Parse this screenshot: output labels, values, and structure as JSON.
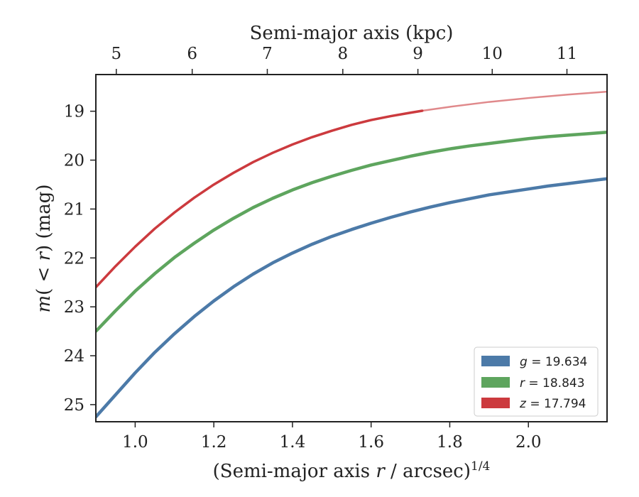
{
  "chart_data": {
    "type": "line",
    "xlabel": "(Semi-major axis r / arcsec)^1/4",
    "ylabel": "m(<r) (mag)",
    "top_xlabel": "Semi-major axis (kpc)",
    "xlim": [
      0.9,
      2.2
    ],
    "ylim": [
      25.35,
      18.25
    ],
    "y_inverted": true,
    "xticks": [
      1.0,
      1.2,
      1.4,
      1.6,
      1.8,
      2.0
    ],
    "xtick_labels": [
      "1.0",
      "1.2",
      "1.4",
      "1.6",
      "1.8",
      "2.0"
    ],
    "yticks": [
      19,
      20,
      21,
      22,
      23,
      24,
      25
    ],
    "ytick_labels": [
      "19",
      "20",
      "21",
      "22",
      "23",
      "24",
      "25"
    ],
    "top_ticks": [
      {
        "label": "5",
        "x": 0.952
      },
      {
        "label": "6",
        "x": 1.145
      },
      {
        "label": "7",
        "x": 1.336
      },
      {
        "label": "8",
        "x": 1.528
      },
      {
        "label": "9",
        "x": 1.719
      },
      {
        "label": "10",
        "x": 1.908
      },
      {
        "label": "11",
        "x": 2.098
      }
    ],
    "legend_position": "lower-right",
    "grid": false,
    "series": [
      {
        "name": "g = 19.634",
        "color": "#4c7aa8",
        "x": [
          0.9,
          0.95,
          1.0,
          1.05,
          1.1,
          1.15,
          1.2,
          1.25,
          1.3,
          1.35,
          1.4,
          1.45,
          1.5,
          1.55,
          1.6,
          1.65,
          1.7,
          1.75,
          1.8,
          1.85,
          1.9,
          1.95,
          2.0,
          2.05,
          2.1,
          2.15,
          2.2
        ],
        "values": [
          25.25,
          24.8,
          24.35,
          23.93,
          23.55,
          23.2,
          22.88,
          22.59,
          22.33,
          22.1,
          21.9,
          21.72,
          21.56,
          21.42,
          21.29,
          21.17,
          21.06,
          20.96,
          20.87,
          20.79,
          20.71,
          20.65,
          20.59,
          20.53,
          20.48,
          20.43,
          20.38
        ]
      },
      {
        "name": "r = 18.843",
        "color": "#5ea55e",
        "x": [
          0.9,
          0.95,
          1.0,
          1.05,
          1.1,
          1.15,
          1.2,
          1.25,
          1.3,
          1.35,
          1.4,
          1.45,
          1.5,
          1.55,
          1.6,
          1.65,
          1.7,
          1.75,
          1.8,
          1.85,
          1.9,
          1.95,
          2.0,
          2.05,
          2.1,
          2.15,
          2.2
        ],
        "values": [
          23.5,
          23.08,
          22.68,
          22.32,
          21.99,
          21.7,
          21.43,
          21.19,
          20.97,
          20.78,
          20.61,
          20.46,
          20.33,
          20.21,
          20.1,
          20.01,
          19.92,
          19.84,
          19.77,
          19.71,
          19.66,
          19.61,
          19.56,
          19.52,
          19.49,
          19.46,
          19.43
        ]
      },
      {
        "name": "z = 17.794",
        "color": "#cc3a3e",
        "faded_from_x": 1.73,
        "x": [
          0.9,
          0.95,
          1.0,
          1.05,
          1.1,
          1.15,
          1.2,
          1.25,
          1.3,
          1.35,
          1.4,
          1.45,
          1.5,
          1.55,
          1.6,
          1.65,
          1.7,
          1.73,
          1.8,
          1.9,
          2.0,
          2.1,
          2.2
        ],
        "values": [
          22.6,
          22.17,
          21.77,
          21.4,
          21.07,
          20.77,
          20.5,
          20.26,
          20.04,
          19.85,
          19.68,
          19.53,
          19.4,
          19.28,
          19.18,
          19.1,
          19.03,
          18.99,
          18.91,
          18.81,
          18.73,
          18.66,
          18.6
        ]
      }
    ]
  }
}
